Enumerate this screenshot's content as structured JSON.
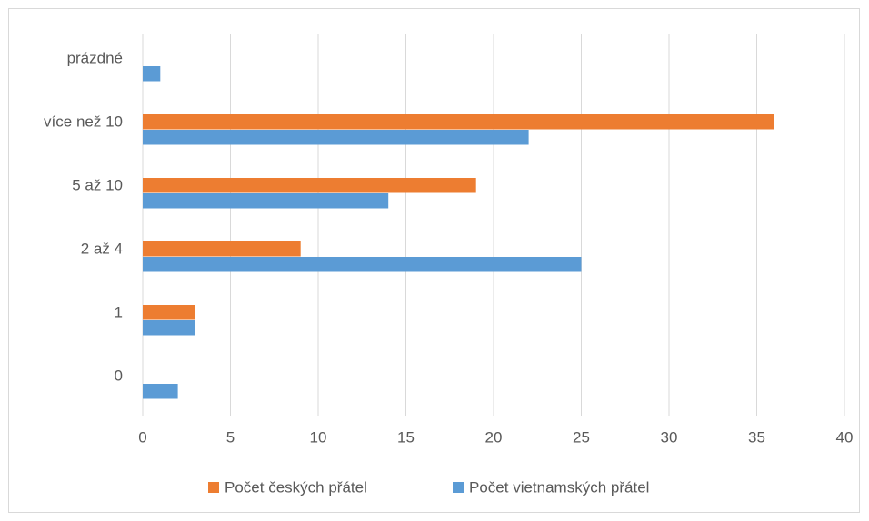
{
  "chart_data": {
    "type": "hbar",
    "categories": [
      "0",
      "1",
      "2 až 4",
      "5 až 10",
      "více než 10",
      "prázdné"
    ],
    "series": [
      {
        "name": "Počet českých přátel",
        "color": "#ed7d31",
        "values": [
          0,
          3,
          9,
          19,
          36,
          0
        ]
      },
      {
        "name": "Počet vietnamských přátel",
        "color": "#5b9bd5",
        "values": [
          2,
          3,
          25,
          14,
          22,
          1
        ]
      }
    ],
    "xlim": [
      0,
      40
    ],
    "xticks": [
      0,
      5,
      10,
      15,
      20,
      25,
      30,
      35,
      40
    ],
    "grid": true,
    "legend": "bottom"
  }
}
